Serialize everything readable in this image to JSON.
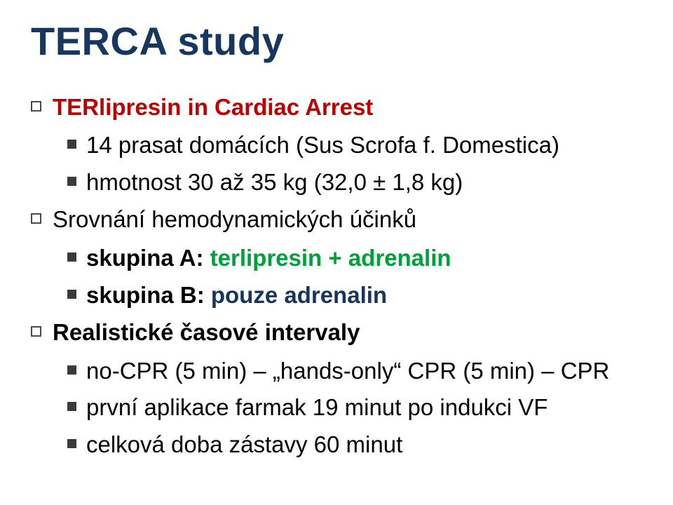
{
  "title": "TERCA study",
  "title_color": "#17375e",
  "colors": {
    "red": "#c00000",
    "green": "#00a13a",
    "blue": "#17365d",
    "body": "#000000"
  },
  "items": [
    {
      "level": 1,
      "spans": [
        {
          "text": "TER",
          "color": "#c00000",
          "bold": true
        },
        {
          "text": "lipresin in ",
          "color": "#c00000",
          "bold": true
        },
        {
          "text": "C",
          "color": "#c00000",
          "bold": true
        },
        {
          "text": "ardiac ",
          "color": "#c00000",
          "bold": true
        },
        {
          "text": "A",
          "color": "#c00000",
          "bold": true
        },
        {
          "text": "rrest",
          "color": "#c00000",
          "bold": true
        }
      ]
    },
    {
      "level": 2,
      "spans": [
        {
          "text": "14 prasat domácích (Sus Scrofa f. Domestica)",
          "color": "#000000",
          "bold": false
        }
      ]
    },
    {
      "level": 2,
      "spans": [
        {
          "text": "hmotnost 30 až 35 kg (32,0 ± 1,8 kg)",
          "color": "#000000",
          "bold": false
        }
      ]
    },
    {
      "level": 1,
      "spans": [
        {
          "text": "Srovnání hemodynamických účinků",
          "color": "#000000",
          "bold": false
        }
      ]
    },
    {
      "level": 2,
      "spans": [
        {
          "text": "skupina A: ",
          "color": "#000000",
          "bold": true
        },
        {
          "text": "terlipresin + adrenalin",
          "color": "#00a13a",
          "bold": true
        }
      ]
    },
    {
      "level": 2,
      "spans": [
        {
          "text": "skupina B: ",
          "color": "#000000",
          "bold": true
        },
        {
          "text": "pouze adrenalin",
          "color": "#17365d",
          "bold": true
        }
      ]
    },
    {
      "level": 1,
      "spans": [
        {
          "text": "Realistické časové intervaly",
          "color": "#000000",
          "bold": true
        }
      ]
    },
    {
      "level": 2,
      "spans": [
        {
          "text": "no-CPR (5 min) – „hands-only“ CPR (5 min) – CPR",
          "color": "#000000",
          "bold": false
        }
      ]
    },
    {
      "level": 2,
      "spans": [
        {
          "text": "první aplikace farmak 19 minut po indukci VF",
          "color": "#000000",
          "bold": false
        }
      ]
    },
    {
      "level": 2,
      "spans": [
        {
          "text": "celková doba zástavy 60 minut",
          "color": "#000000",
          "bold": false
        }
      ]
    }
  ]
}
